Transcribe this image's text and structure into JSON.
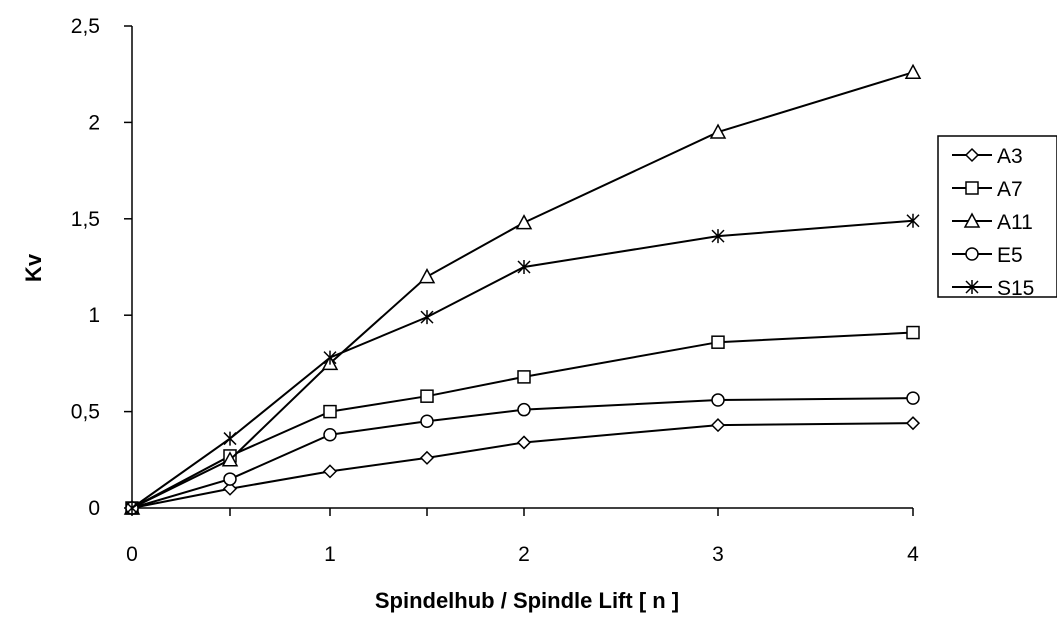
{
  "chart_data": {
    "type": "line",
    "title": "",
    "xlabel": "Spindelhub / Spindle Lift [ n ]",
    "ylabel": "Kv",
    "x": [
      0,
      0.5,
      1,
      1.5,
      2,
      3,
      4
    ],
    "x_ticks": [
      0,
      1,
      2,
      3,
      4
    ],
    "x_tick_labels": [
      "0",
      "1",
      "2",
      "3",
      "4"
    ],
    "y_ticks": [
      0,
      0.5,
      1,
      1.5,
      2,
      2.5
    ],
    "y_tick_labels": [
      "0",
      "0,5",
      "1",
      "1,5",
      "2",
      "2,5"
    ],
    "ylim": [
      0,
      2.5
    ],
    "grid": false,
    "legend_position": "right",
    "series": [
      {
        "name": "A3",
        "marker": "diamond",
        "values": [
          0,
          0.1,
          0.19,
          0.26,
          0.34,
          0.43,
          0.44
        ]
      },
      {
        "name": "A7",
        "marker": "square",
        "values": [
          0,
          0.27,
          0.5,
          0.58,
          0.68,
          0.86,
          0.91
        ]
      },
      {
        "name": "A11",
        "marker": "triangle",
        "values": [
          0,
          0.25,
          0.75,
          1.2,
          1.48,
          1.95,
          2.26
        ]
      },
      {
        "name": "E5",
        "marker": "circle",
        "values": [
          0,
          0.15,
          0.38,
          0.45,
          0.51,
          0.56,
          0.57
        ]
      },
      {
        "name": "S15",
        "marker": "star",
        "values": [
          0,
          0.36,
          0.78,
          0.99,
          1.25,
          1.41,
          1.49
        ]
      }
    ]
  }
}
